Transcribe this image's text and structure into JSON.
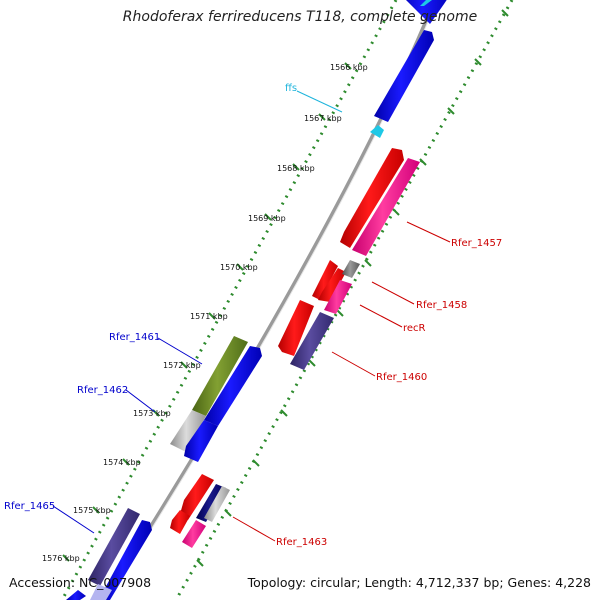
{
  "title": "Rhodoferax ferrireducens T118, complete genome",
  "footer": {
    "accession": "Accession: NC_007908",
    "summary": "Topology: circular; Length: 4,712,337 bp; Genes: 4,228"
  },
  "colors": {
    "background": "#ffffff",
    "backbone": "#8c8c8c",
    "tick_mark": "#2e8b2e",
    "gene_blue": "#0000e6",
    "gene_red": "#ff0000",
    "gene_pink": "#ff1a8c",
    "gene_navy": "#4a3c8c",
    "gene_olive": "#6b8e23",
    "gene_gray": "#a9a9a9",
    "rna_cyan": "#1ec8e6",
    "label_red": "#cc0000",
    "label_blue": "#0000cc",
    "label_cyan": "#1eb4dc"
  },
  "ticks": [
    "1566 kbp",
    "1567 kbp",
    "1568 kbp",
    "1569 kbp",
    "1570 kbp",
    "1571 kbp",
    "1572 kbp",
    "1573 kbp",
    "1574 kbp",
    "1575 kbp",
    "1576 kbp"
  ],
  "labels": {
    "ffs": "ffs",
    "rfer_1457": "Rfer_1457",
    "rfer_1458": "Rfer_1458",
    "recR": "recR",
    "rfer_1460": "Rfer_1460",
    "rfer_1461": "Rfer_1461",
    "rfer_1462": "Rfer_1462",
    "rfer_1463": "Rfer_1463",
    "rfer_1465": "Rfer_1465"
  }
}
